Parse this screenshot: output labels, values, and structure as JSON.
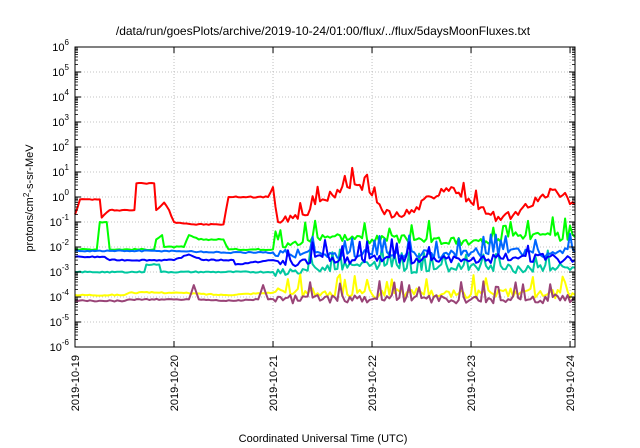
{
  "chart_data": {
    "type": "line",
    "title": "/data/run/goesPlots/archive/2019-10-24/01:00/flux/../flux/5daysMoonFluxes.txt",
    "xlabel": "Coordinated Universal Time (UTC)",
    "ylabel": {
      "base": "protons/cm",
      "sup": "2",
      "rest": "-s-sr-MeV"
    },
    "y_scale": "log",
    "ylim_exp": [
      -6,
      6
    ],
    "y_tick_exponents": [
      -6,
      -5,
      -4,
      -3,
      -2,
      -1,
      0,
      1,
      2,
      3,
      4,
      5,
      6
    ],
    "xlim_days": [
      0,
      5.05
    ],
    "x_ticks": [
      {
        "day": 0,
        "label": "2019-10-19"
      },
      {
        "day": 1,
        "label": "2019-10-20"
      },
      {
        "day": 2,
        "label": "2019-10-21"
      },
      {
        "day": 3,
        "label": "2019-10-22"
      },
      {
        "day": 4,
        "label": "2019-10-23"
      },
      {
        "day": 5,
        "label": "2019-10-24"
      }
    ],
    "grid": true,
    "series": [
      {
        "color": "#ff0000",
        "points": [
          [
            0,
            0.2
          ],
          [
            0.05,
            0.8
          ],
          [
            0.25,
            0.8
          ],
          [
            0.27,
            0.15
          ],
          [
            0.35,
            0.3
          ],
          [
            0.6,
            0.3
          ],
          [
            0.62,
            3.5
          ],
          [
            0.8,
            3.5
          ],
          [
            0.82,
            0.3
          ],
          [
            0.9,
            0.6
          ],
          [
            0.95,
            0.3
          ],
          [
            1.0,
            0.1
          ],
          [
            1.2,
            0.08
          ],
          [
            1.5,
            0.08
          ],
          [
            1.55,
            1.0
          ],
          [
            1.95,
            1.0
          ],
          [
            2.0,
            2.5
          ],
          [
            2.05,
            0.1
          ],
          [
            2.3,
            0.2
          ],
          [
            2.5,
            0.8
          ],
          [
            2.75,
            2.5
          ],
          [
            2.85,
            3.0
          ],
          [
            3.05,
            0.6
          ],
          [
            3.2,
            0.15
          ],
          [
            3.4,
            0.3
          ],
          [
            3.6,
            1.0
          ],
          [
            3.8,
            2.5
          ],
          [
            4.0,
            0.6
          ],
          [
            4.3,
            0.12
          ],
          [
            4.5,
            0.3
          ],
          [
            4.7,
            1.0
          ],
          [
            4.85,
            2.0
          ],
          [
            5.05,
            0.5
          ]
        ]
      },
      {
        "color": "#00ff00",
        "points": [
          [
            0,
            0.008
          ],
          [
            0.22,
            0.008
          ],
          [
            0.25,
            0.1
          ],
          [
            0.32,
            0.1
          ],
          [
            0.35,
            0.008
          ],
          [
            0.8,
            0.008
          ],
          [
            0.82,
            0.02
          ],
          [
            0.88,
            0.03
          ],
          [
            0.9,
            0.01
          ],
          [
            1.1,
            0.01
          ],
          [
            1.15,
            0.03
          ],
          [
            1.25,
            0.02
          ],
          [
            1.5,
            0.02
          ],
          [
            1.55,
            0.008
          ],
          [
            2.0,
            0.008
          ],
          [
            2.05,
            0.02
          ],
          [
            2.1,
            0.01
          ],
          [
            2.5,
            0.03
          ],
          [
            3.0,
            0.02
          ],
          [
            3.5,
            0.02
          ],
          [
            4.0,
            0.015
          ],
          [
            4.5,
            0.03
          ],
          [
            5.05,
            0.025
          ]
        ]
      },
      {
        "color": "#00c8a0",
        "points": [
          [
            0,
            0.001
          ],
          [
            0.7,
            0.001
          ],
          [
            0.72,
            0.002
          ],
          [
            0.85,
            0.002
          ],
          [
            0.87,
            0.001
          ],
          [
            2.0,
            0.001
          ],
          [
            2.5,
            0.0015
          ],
          [
            3.0,
            0.002
          ],
          [
            3.5,
            0.0012
          ],
          [
            4.0,
            0.0018
          ],
          [
            4.5,
            0.0013
          ],
          [
            5.05,
            0.0015
          ]
        ]
      },
      {
        "color": "#0066ff",
        "points": [
          [
            0,
            0.007
          ],
          [
            1.0,
            0.007
          ],
          [
            1.5,
            0.006
          ],
          [
            2.0,
            0.006
          ],
          [
            2.5,
            0.005
          ],
          [
            3.0,
            0.005
          ],
          [
            3.5,
            0.005
          ],
          [
            4.0,
            0.006
          ],
          [
            4.5,
            0.006
          ],
          [
            5.05,
            0.006
          ]
        ]
      },
      {
        "color": "#0000ff",
        "points": [
          [
            0,
            0.004
          ],
          [
            0.3,
            0.004
          ],
          [
            0.35,
            0.003
          ],
          [
            1.0,
            0.003
          ],
          [
            1.15,
            0.005
          ],
          [
            1.3,
            0.003
          ],
          [
            1.6,
            0.003
          ],
          [
            1.62,
            0.002
          ],
          [
            2.0,
            0.003
          ],
          [
            2.2,
            0.002
          ],
          [
            2.5,
            0.004
          ],
          [
            2.8,
            0.003
          ],
          [
            3.0,
            0.004
          ],
          [
            3.5,
            0.003
          ],
          [
            4.0,
            0.003
          ],
          [
            4.5,
            0.004
          ],
          [
            5.05,
            0.003
          ]
        ]
      },
      {
        "color": "#ffff00",
        "points": [
          [
            0,
            0.00012
          ],
          [
            0.5,
            0.00012
          ],
          [
            0.55,
            0.00015
          ],
          [
            1.0,
            0.00015
          ],
          [
            1.5,
            0.00012
          ],
          [
            2.0,
            0.00015
          ],
          [
            2.5,
            0.00015
          ],
          [
            3.0,
            0.00013
          ],
          [
            3.5,
            0.00015
          ],
          [
            4.0,
            0.00013
          ],
          [
            4.5,
            0.00015
          ],
          [
            5.05,
            0.00012
          ]
        ]
      },
      {
        "color": "#994477",
        "points": [
          [
            0,
            7e-05
          ],
          [
            0.5,
            7e-05
          ],
          [
            0.55,
            8e-05
          ],
          [
            1.15,
            8e-05
          ],
          [
            1.2,
            0.0003
          ],
          [
            1.25,
            8e-05
          ],
          [
            1.6,
            7e-05
          ],
          [
            1.85,
            8e-05
          ],
          [
            1.9,
            0.0003
          ],
          [
            1.95,
            8e-05
          ],
          [
            2.5,
            8e-05
          ],
          [
            3.0,
            8e-05
          ],
          [
            3.5,
            9e-05
          ],
          [
            4.0,
            8e-05
          ],
          [
            4.5,
            8e-05
          ],
          [
            5.05,
            9e-05
          ]
        ]
      }
    ]
  }
}
